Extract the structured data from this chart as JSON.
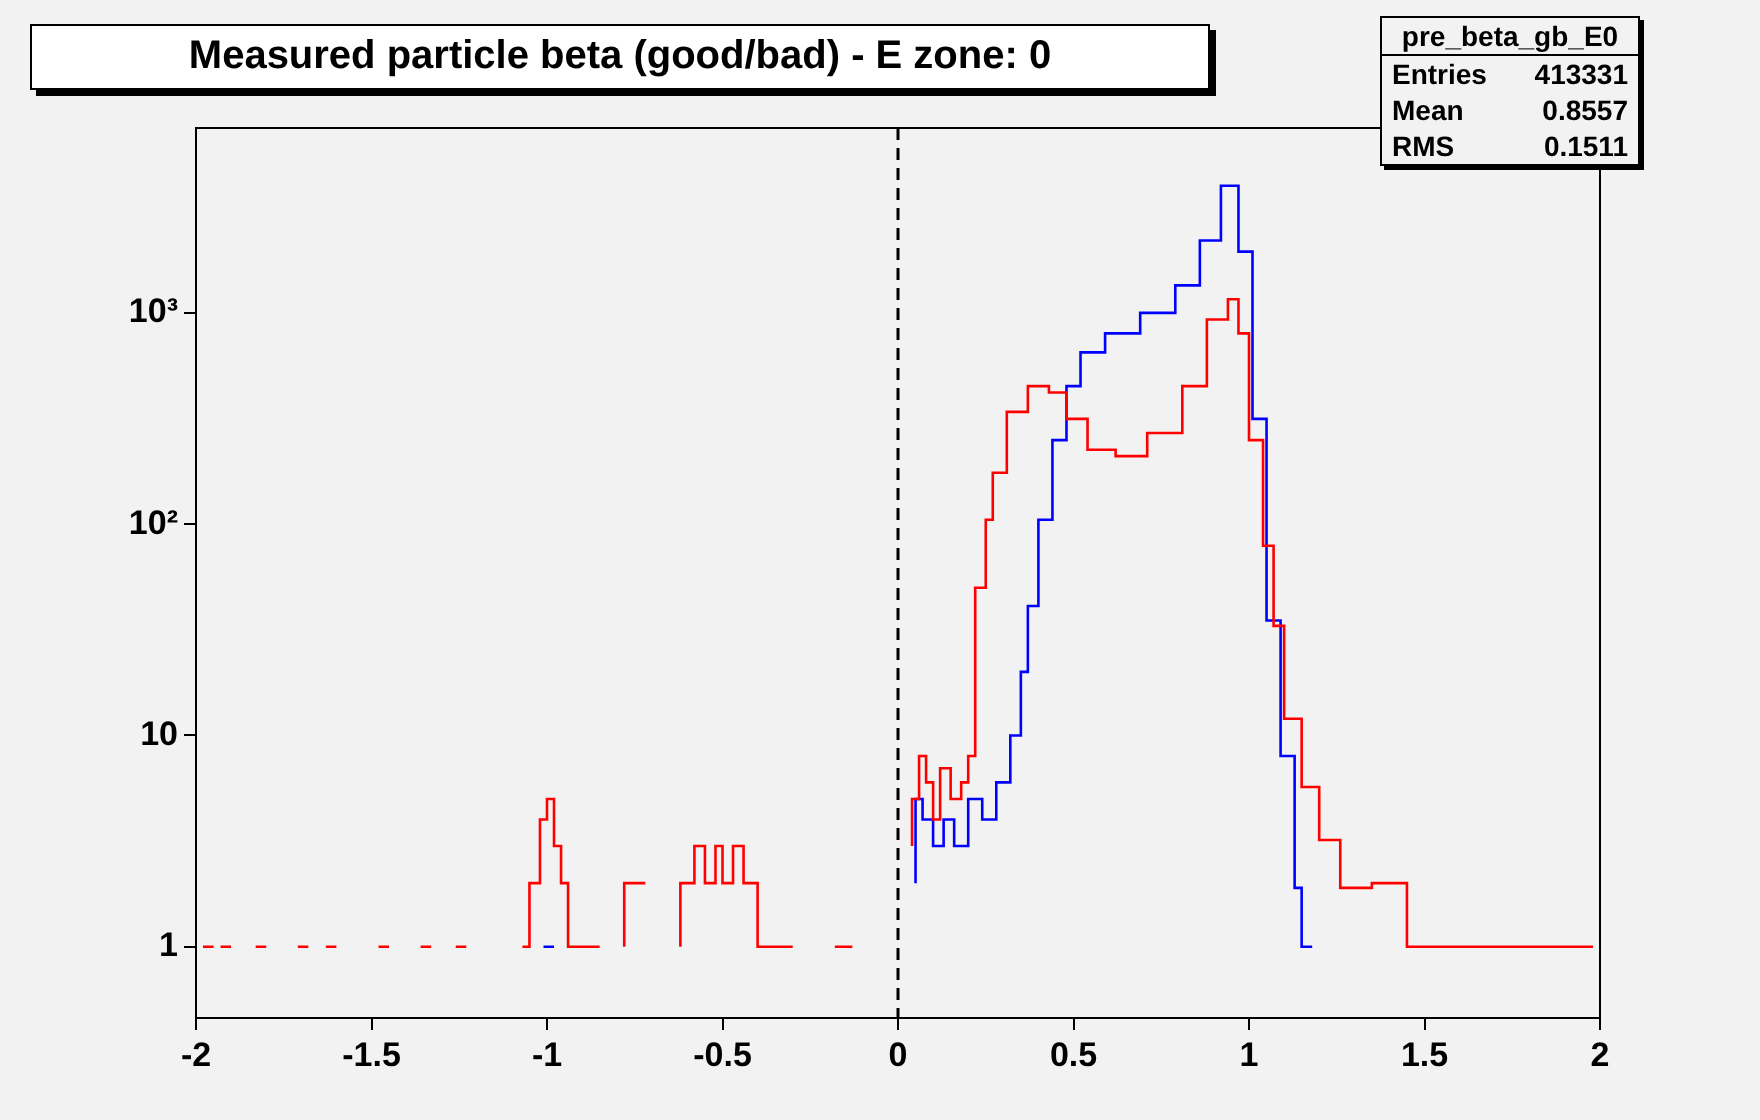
{
  "chart_data": {
    "type": "step",
    "title": "Measured particle beta (good/bad) - E zone: 0",
    "annotations": [
      "pre_beta_gb_E0",
      "Entries 413331",
      "Mean 0.8557",
      "RMS 0.1511"
    ],
    "log": "y",
    "grid": false,
    "legend": false,
    "xlim": [
      -2,
      2
    ],
    "xticks": [
      -2,
      -1.5,
      -1,
      -0.5,
      0,
      0.5,
      1,
      1.5,
      2
    ],
    "ylim": [
      0.46,
      7500
    ],
    "yticks": [
      {
        "value": 1,
        "label": "1"
      },
      {
        "value": 10,
        "label": "10"
      },
      {
        "value": 100,
        "label": "10²"
      },
      {
        "value": 1000,
        "label": "10³"
      }
    ],
    "ref_lines": [
      {
        "axis": "x",
        "value": 0,
        "color": "#000000",
        "line_style": "dashed"
      }
    ],
    "series": [
      {
        "color": "#ff0000",
        "x": [
          -1.98,
          -1.95,
          -1.94,
          -1.93,
          -1.9,
          -1.89,
          -1.83,
          -1.8,
          -1.79,
          -1.71,
          -1.68,
          -1.67,
          -1.63,
          -1.6,
          -1.59,
          -1.48,
          -1.45,
          -1.44,
          -1.36,
          -1.33,
          -1.32,
          -1.26,
          -1.23,
          -1.22,
          -1.07,
          -1.05,
          -1.02,
          -1,
          -0.98,
          -0.96,
          -0.94,
          -0.9,
          -0.85,
          -0.8,
          -0.78,
          -0.72,
          -0.7,
          -0.62,
          -0.58,
          -0.55,
          -0.52,
          -0.5,
          -0.47,
          -0.44,
          -0.4,
          -0.35,
          -0.3,
          -0.27,
          -0.18,
          -0.13,
          -0.12,
          0.04,
          0.06,
          0.08,
          0.1,
          0.12,
          0.15,
          0.18,
          0.2,
          0.22,
          0.25,
          0.27,
          0.31,
          0.37,
          0.43,
          0.48,
          0.54,
          0.62,
          0.71,
          0.81,
          0.88,
          0.94,
          0.97,
          1,
          1.04,
          1.07,
          1.1,
          1.15,
          1.2,
          1.26,
          1.35,
          1.45,
          1.5,
          1.6,
          1.7,
          1.8,
          1.9,
          1.98
        ],
        "values": [
          1,
          1,
          null,
          1,
          1,
          null,
          1,
          1,
          null,
          1,
          1,
          null,
          1,
          1,
          null,
          1,
          1,
          null,
          1,
          1,
          null,
          1,
          1,
          null,
          1,
          1,
          2,
          4,
          5,
          3,
          2,
          1,
          1,
          null,
          1,
          2,
          null,
          1,
          2,
          3,
          2,
          3,
          2,
          3,
          2,
          1,
          1,
          null,
          1,
          1,
          null,
          3,
          5,
          8,
          6,
          4,
          7,
          5,
          6,
          8,
          50,
          105,
          175,
          340,
          450,
          420,
          315,
          225,
          210,
          270,
          450,
          930,
          1160,
          800,
          250,
          79,
          33,
          12,
          5.7,
          3.2,
          1.9,
          2,
          1,
          1,
          1,
          1,
          1,
          1
        ]
      },
      {
        "color": "#0000ff",
        "x": [
          -1.01,
          -0.98,
          -0.97,
          0.05,
          0.07,
          0.1,
          0.13,
          0.16,
          0.2,
          0.24,
          0.28,
          0.32,
          0.35,
          0.37,
          0.4,
          0.44,
          0.48,
          0.52,
          0.59,
          0.69,
          0.79,
          0.86,
          0.92,
          0.97,
          1.01,
          1.05,
          1.09,
          1.13,
          1.15,
          1.18
        ],
        "values": [
          1,
          1,
          null,
          2,
          5,
          4,
          3,
          4,
          3,
          5,
          4,
          6,
          10,
          20,
          41,
          105,
          250,
          450,
          650,
          800,
          1000,
          1350,
          2200,
          4000,
          1950,
          315,
          35,
          8,
          1.9,
          1
        ]
      }
    ]
  }
}
